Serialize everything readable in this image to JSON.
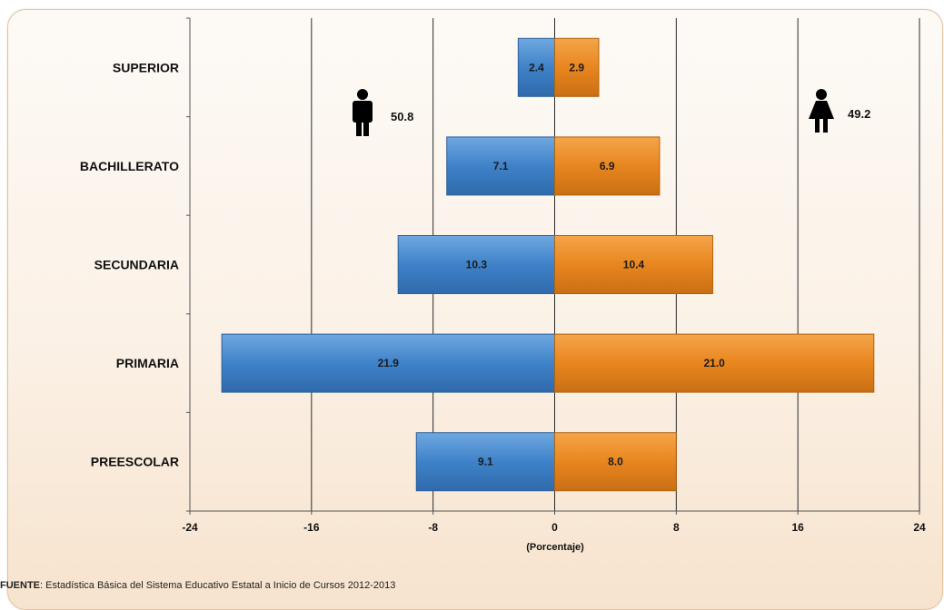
{
  "chart_data": {
    "type": "bar",
    "orientation": "horizontal",
    "categories": [
      "SUPERIOR",
      "BACHILLERATO",
      "SECUNDARIA",
      "PRIMARIA",
      "PREESCOLAR"
    ],
    "series": [
      {
        "values": [
          -2.4,
          -7.1,
          -10.3,
          -21.9,
          -9.1
        ],
        "labels": [
          "2.4",
          "7.1",
          "10.3",
          "21.9",
          "9.1"
        ],
        "color": "#3f82c9"
      },
      {
        "values": [
          2.9,
          6.9,
          10.4,
          21.0,
          8.0
        ],
        "labels": [
          "2.9",
          "6.9",
          "10.4",
          "21.0",
          "8.0"
        ],
        "color": "#e8861f"
      }
    ],
    "xlabel": "(Porcentaje)",
    "xlim": [
      -24,
      24
    ],
    "xticks": [
      -24,
      -16,
      -8,
      0,
      8,
      16,
      24
    ],
    "xtick_labels": [
      "-24",
      "-16",
      "-8",
      "0",
      "8",
      "16",
      "24"
    ],
    "grid": "vertical",
    "annotations": {
      "male_total": "50.8",
      "female_total": "49.2"
    }
  },
  "icons": {
    "male": "man-icon",
    "female": "woman-icon"
  },
  "source": {
    "label": "FUENTE",
    "text": ": Estadística Básica del Sistema Educativo Estatal a Inicio de Cursos 2012-2013"
  }
}
